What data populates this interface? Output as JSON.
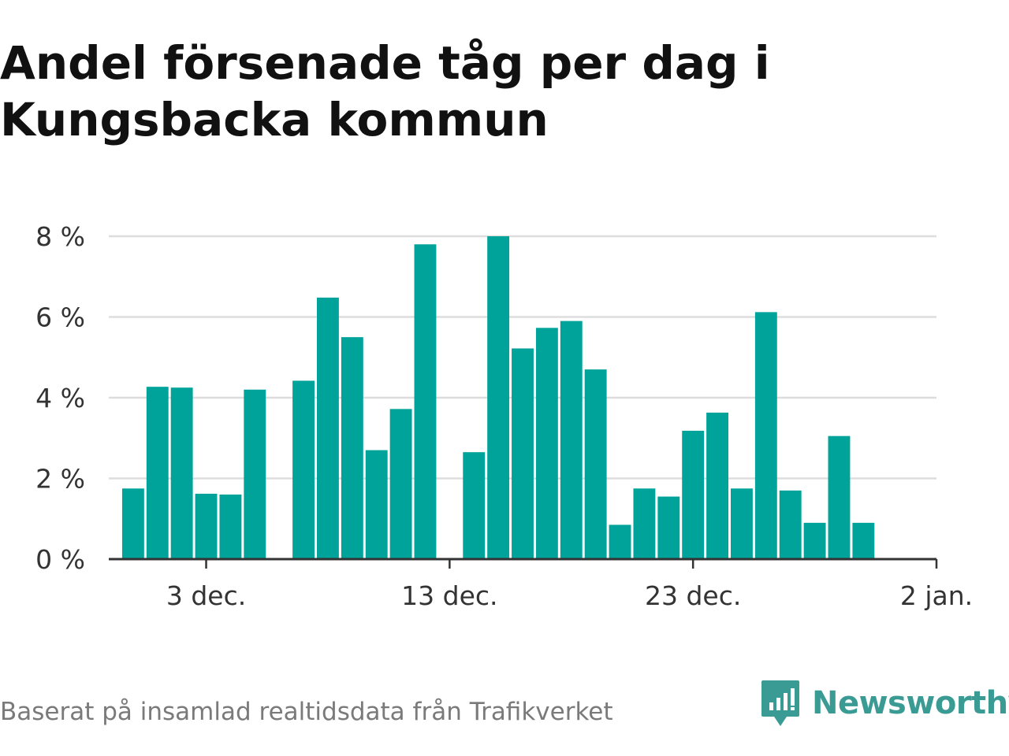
{
  "title": "Andel försenade tåg per dag i Kungsbacka kommun",
  "source": "Baserat på insamlad realtidsdata från Trafikverket",
  "brand": {
    "name": "Newsworthy",
    "icon": "newsworthy-logo-icon",
    "color": "#3a9b94"
  },
  "colors": {
    "bar": "#00a39a",
    "grid": "#dddddd",
    "axis": "#333333",
    "text": "#333333"
  },
  "chart_data": {
    "type": "bar",
    "x": [
      "2023-11-30",
      "2023-12-01",
      "2023-12-02",
      "2023-12-03",
      "2023-12-04",
      "2023-12-05",
      "2023-12-06",
      "2023-12-07",
      "2023-12-08",
      "2023-12-09",
      "2023-12-10",
      "2023-12-11",
      "2023-12-12",
      "2023-12-13",
      "2023-12-14",
      "2023-12-15",
      "2023-12-16",
      "2023-12-17",
      "2023-12-18",
      "2023-12-19",
      "2023-12-20",
      "2023-12-21",
      "2023-12-22",
      "2023-12-23",
      "2023-12-24",
      "2023-12-25",
      "2023-12-26",
      "2023-12-27",
      "2023-12-28",
      "2023-12-29",
      "2023-12-30",
      "2023-12-31"
    ],
    "values": [
      1.75,
      4.27,
      4.25,
      1.62,
      1.6,
      4.2,
      null,
      4.42,
      6.48,
      5.5,
      2.7,
      3.72,
      7.8,
      null,
      2.65,
      8.0,
      5.22,
      5.73,
      5.9,
      4.7,
      0.85,
      1.75,
      1.55,
      3.18,
      3.63,
      1.75,
      6.12,
      1.7,
      0.9,
      3.05,
      0.9,
      null
    ],
    "xticks": [
      {
        "x": "2023-12-03",
        "label": "3 dec."
      },
      {
        "x": "2023-12-13",
        "label": "13 dec."
      },
      {
        "x": "2023-12-23",
        "label": "23 dec."
      },
      {
        "x": "2024-01-02",
        "label": "2 jan."
      }
    ],
    "yticks": [
      {
        "value": 0,
        "label": "0 %"
      },
      {
        "value": 2,
        "label": "2 %"
      },
      {
        "value": 4,
        "label": "4 %"
      },
      {
        "value": 6,
        "label": "6 %"
      },
      {
        "value": 8,
        "label": "8 %"
      }
    ],
    "ylim": [
      0,
      8
    ],
    "xlim": [
      "2023-11-29",
      "2024-01-02"
    ],
    "grid": true,
    "ylabel": "",
    "xlabel": ""
  }
}
